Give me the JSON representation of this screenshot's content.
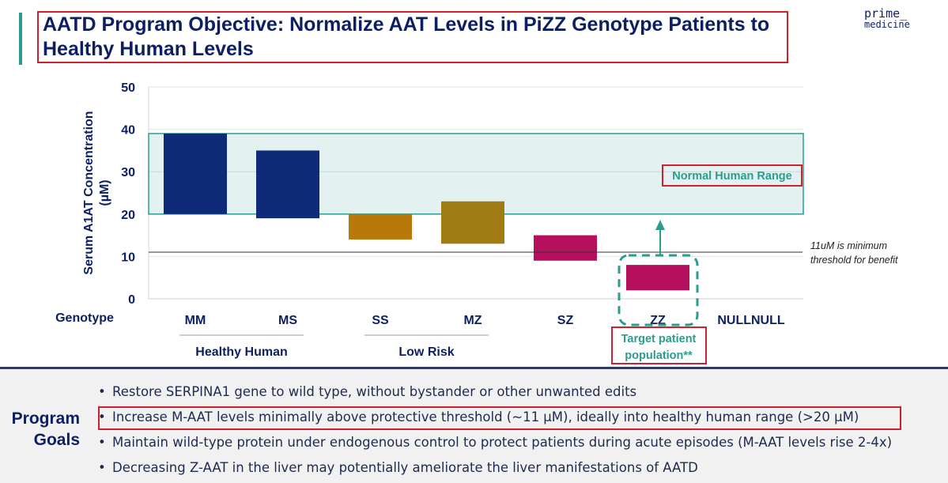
{
  "slide": {
    "title": "AATD Program Objective: Normalize AAT Levels in PiZZ Genotype Patients to Healthy Human Levels",
    "logo_line1": "prime_",
    "logo_line2": "medicine"
  },
  "chart_data": {
    "type": "bar",
    "subtype": "floating-range",
    "ylabel": "Serum A1AT Concentration (µM)",
    "xlabel": "Genotype",
    "ylim": [
      0,
      50
    ],
    "yticks": [
      0,
      10,
      20,
      30,
      40,
      50
    ],
    "categories": [
      "MM",
      "MS",
      "SS",
      "MZ",
      "SZ",
      "ZZ",
      "NULLNULL"
    ],
    "ranges": [
      {
        "genotype": "MM",
        "low": 20,
        "high": 39,
        "color": "#0f2a78"
      },
      {
        "genotype": "MS",
        "low": 19,
        "high": 35,
        "color": "#0f2a78"
      },
      {
        "genotype": "SS",
        "low": 14,
        "high": 20,
        "color": "#b8780a"
      },
      {
        "genotype": "MZ",
        "low": 13,
        "high": 23,
        "color": "#a07a12"
      },
      {
        "genotype": "SZ",
        "low": 9,
        "high": 15,
        "color": "#b5105e"
      },
      {
        "genotype": "ZZ",
        "low": 2,
        "high": 8,
        "color": "#b5105e"
      },
      {
        "genotype": "NULLNULL",
        "low": null,
        "high": null,
        "color": null
      }
    ],
    "normal_range": {
      "low": 20,
      "high": 39,
      "label": "Normal Human Range",
      "color": "#2a9d8f"
    },
    "threshold": {
      "value": 11,
      "label_line1": "11uM is minimum",
      "label_line2": "threshold for benefit"
    },
    "groups": [
      {
        "label": "Healthy Human",
        "from": "MM",
        "to": "MS"
      },
      {
        "label": "Low Risk",
        "from": "SS",
        "to": "MZ"
      }
    ],
    "target": {
      "genotype": "ZZ",
      "label_line1": "Target patient",
      "label_line2": "population**"
    }
  },
  "goals": {
    "heading_line1": "Program",
    "heading_line2": "Goals",
    "bullet": "•",
    "items": [
      "Restore SERPINA1 gene to wild type, without bystander or other unwanted edits",
      "Increase M-AAT levels minimally above protective threshold (~11 µM), ideally into healthy human range (>20 µM)",
      "Maintain wild-type protein under endogenous control to protect patients during acute episodes (M-AAT levels rise 2-4x)",
      "Decreasing Z-AAT in the liver may potentially ameliorate the liver manifestations of AATD"
    ]
  },
  "colors": {
    "navy": "#0d1f63",
    "teal": "#2a9d8f",
    "highlight_red": "#d0202e"
  }
}
